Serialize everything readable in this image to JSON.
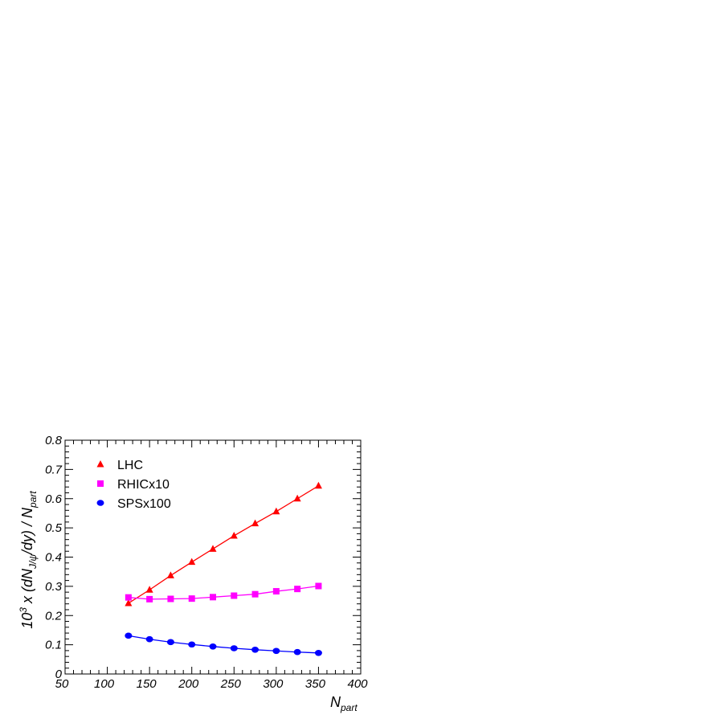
{
  "chart_data": {
    "type": "line",
    "title": "",
    "xlabel": {
      "main": "N",
      "sub": "part"
    },
    "ylabel": {
      "prefix": "10",
      "exp": "3",
      "mid1": " x (dN",
      "sub1": "J/ψ",
      "mid2": "/dy) / N",
      "sub2": "part"
    },
    "xlim": [
      50,
      400
    ],
    "ylim": [
      0,
      0.8
    ],
    "x_ticks": [
      50,
      100,
      150,
      200,
      250,
      300,
      350,
      400
    ],
    "x_tick_labels": [
      "50",
      "100",
      "150",
      "200",
      "250",
      "300",
      "350",
      "400"
    ],
    "y_ticks": [
      0,
      0.1,
      0.2,
      0.3,
      0.4,
      0.5,
      0.6,
      0.7,
      0.8
    ],
    "y_tick_labels": [
      "0",
      "0.1",
      "0.2",
      "0.3",
      "0.4",
      "0.5",
      "0.6",
      "0.7",
      "0.8"
    ],
    "grid": false,
    "legend_position": "top-left",
    "x": [
      125,
      150,
      175,
      200,
      225,
      250,
      275,
      300,
      325,
      350
    ],
    "series": [
      {
        "name": "LHC",
        "marker": "triangle",
        "color": "#ff0000",
        "values": [
          0.242,
          0.288,
          0.337,
          0.383,
          0.428,
          0.473,
          0.515,
          0.556,
          0.6,
          0.644
        ]
      },
      {
        "name": "RHICx10",
        "marker": "square",
        "color": "#ff00ff",
        "values": [
          0.262,
          0.256,
          0.257,
          0.258,
          0.263,
          0.268,
          0.273,
          0.283,
          0.291,
          0.301
        ]
      },
      {
        "name": "SPSx100",
        "marker": "circle",
        "color": "#0000ff",
        "values": [
          0.131,
          0.119,
          0.109,
          0.101,
          0.094,
          0.088,
          0.083,
          0.079,
          0.075,
          0.072
        ]
      }
    ]
  }
}
